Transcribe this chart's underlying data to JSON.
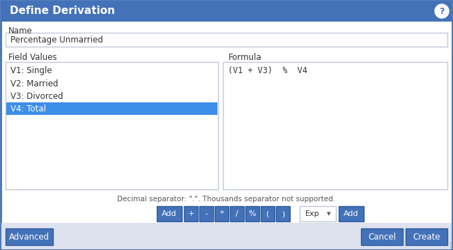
{
  "title": "Define Derivation",
  "title_bg": "#4472b8",
  "title_text_color": "#ffffff",
  "dialog_bg": "#ffffff",
  "border_color": "#4472b8",
  "outer_bg": "#e8eaf0",
  "name_label": "Name",
  "name_value": "Percentage Unmarried",
  "field_values_label": "Field Values",
  "formula_label": "Formula",
  "field_items": [
    "V1: Single",
    "V2: Married",
    "V3: Divorced",
    "V4: Total"
  ],
  "selected_item": 3,
  "selected_bg": "#3d8ee8",
  "selected_text_color": "#ffffff",
  "formula_text": "(V1 + V3)  %  V4",
  "op_buttons": [
    "+",
    "-",
    "*",
    "/",
    "%",
    "(",
    ")"
  ],
  "button_bg": "#4472b8",
  "button_text_color": "#ffffff",
  "add_label": "Add",
  "exp_label": "Exp",
  "decimal_note": "Decimal separator: \".\". Thousands separator not supported.",
  "bottom_buttons": [
    "Advanced",
    "Cancel",
    "Create"
  ],
  "input_border": "#c0c8d8",
  "input_bg": "#ffffff",
  "help_icon": "?",
  "bottom_bg": "#dde2ee",
  "label_color": "#333333",
  "note_color": "#555555"
}
